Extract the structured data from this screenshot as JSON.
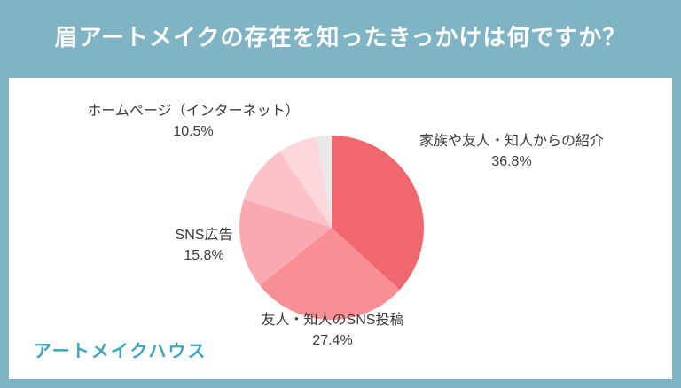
{
  "page": {
    "background_color": "#7EB4C4",
    "title": "眉アートメイクの存在を知ったきっかけは何ですか？",
    "title_color": "#FFFFFF",
    "footer_logo": "アートメイクハウス",
    "footer_logo_color": "#3FA4BD"
  },
  "chart_data": {
    "type": "pie",
    "title": "眉アートメイクの存在を知ったきっかけは何ですか？",
    "start_angle_deg": 0,
    "direction": "clockwise",
    "legend": "none",
    "labels_position": "outside",
    "slices": [
      {
        "label": "家族や友人・知人からの紹介",
        "value": 36.8,
        "value_label": "36.8%",
        "color": "#F0676D"
      },
      {
        "label": "友人・知人のSNS投稿",
        "value": 27.4,
        "value_label": "27.4%",
        "color": "#F98F94"
      },
      {
        "label": "SNS広告",
        "value": 15.8,
        "value_label": "15.8%",
        "color": "#FAA9B0"
      },
      {
        "label": "ホームページ（インターネット）",
        "value": 10.5,
        "value_label": "10.5%",
        "color": "#FBC3C9"
      },
      {
        "label": "",
        "value": 6.9,
        "value_label": "",
        "color": "#FCD8DC"
      },
      {
        "label": "",
        "value": 2.6,
        "value_label": "",
        "color": "#E8E8E8"
      }
    ]
  }
}
